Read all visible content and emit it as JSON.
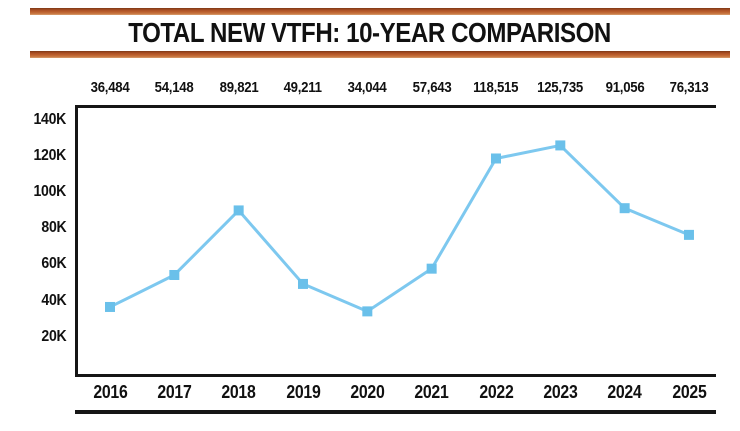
{
  "title": "TOTAL NEW VTFH: 10-YEAR COMPARISON",
  "colors": {
    "accent_bar": "#b5592a",
    "line": "#7dc8ef",
    "marker": "#6ac0ea",
    "axis": "#161616",
    "text": "#111111"
  },
  "chart_data": {
    "type": "line",
    "title": "TOTAL NEW VTFH: 10-YEAR COMPARISON",
    "categories": [
      "2016",
      "2017",
      "2018",
      "2019",
      "2020",
      "2021",
      "2022",
      "2023",
      "2024",
      "2025"
    ],
    "series": [
      {
        "name": "Total New VTFH",
        "values": [
          36484,
          54148,
          89821,
          49211,
          34044,
          57643,
          118515,
          125735,
          91056,
          76313
        ]
      }
    ],
    "value_labels": [
      "36,484",
      "54,148",
      "89,821",
      "49,211",
      "34,044",
      "57,643",
      "118,515",
      "125,735",
      "91,056",
      "76,313"
    ],
    "y_ticks": [
      "140K",
      "120K",
      "100K",
      "80K",
      "60K",
      "40K",
      "20K"
    ],
    "y_tick_values": [
      140000,
      120000,
      100000,
      80000,
      60000,
      40000,
      20000
    ],
    "ylim": [
      0,
      145000
    ],
    "xlabel": "",
    "ylabel": "",
    "grid": false,
    "legend": false,
    "marker_shape": "square"
  }
}
